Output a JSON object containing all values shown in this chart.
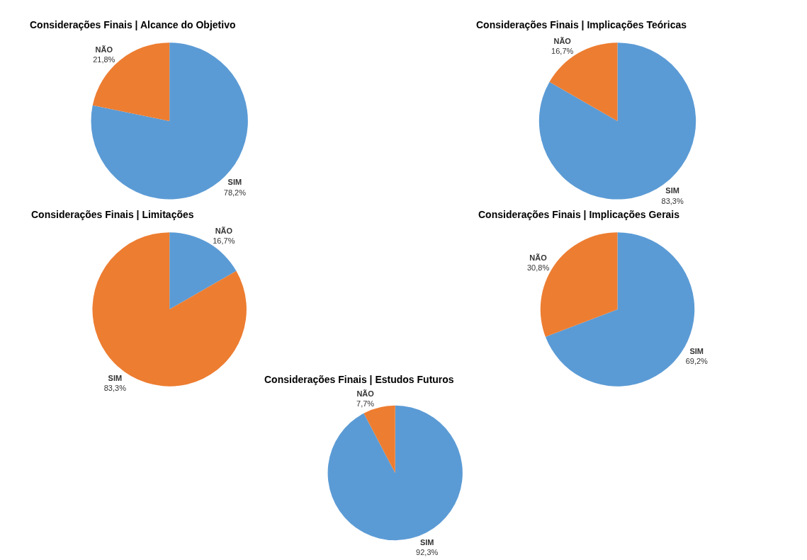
{
  "chart_data": [
    {
      "type": "pie",
      "title": "Considerações Finais | Alcance do Objetivo",
      "categories": [
        "SIM",
        "NÃO"
      ],
      "values": [
        78.2,
        21.8
      ],
      "colors": [
        "#5b9bd5",
        "#ed7d31"
      ],
      "value_labels": [
        "78,2%",
        "21,8%"
      ]
    },
    {
      "type": "pie",
      "title": "Considerações Finais | Implicações Teóricas",
      "categories": [
        "SIM",
        "NÃO"
      ],
      "values": [
        83.3,
        16.7
      ],
      "colors": [
        "#5b9bd5",
        "#ed7d31"
      ],
      "value_labels": [
        "83,3%",
        "16,7%"
      ]
    },
    {
      "type": "pie",
      "title": "Considerações Finais | Limitações",
      "categories": [
        "NÃO",
        "SIM"
      ],
      "values": [
        16.7,
        83.3
      ],
      "colors": [
        "#5b9bd5",
        "#ed7d31"
      ],
      "value_labels": [
        "16,7%",
        "83,3%"
      ]
    },
    {
      "type": "pie",
      "title": "Considerações Finais | Implicações Gerais",
      "categories": [
        "SIM",
        "NÃO"
      ],
      "values": [
        69.2,
        30.8
      ],
      "colors": [
        "#5b9bd5",
        "#ed7d31"
      ],
      "value_labels": [
        "69,2%",
        "30,8%"
      ]
    },
    {
      "type": "pie",
      "title": "Considerações Finais | Estudos Futuros",
      "categories": [
        "SIM",
        "NÃO"
      ],
      "values": [
        92.3,
        7.7
      ],
      "colors": [
        "#5b9bd5",
        "#ed7d31"
      ],
      "value_labels": [
        "92,3%",
        "7,7%"
      ]
    }
  ]
}
